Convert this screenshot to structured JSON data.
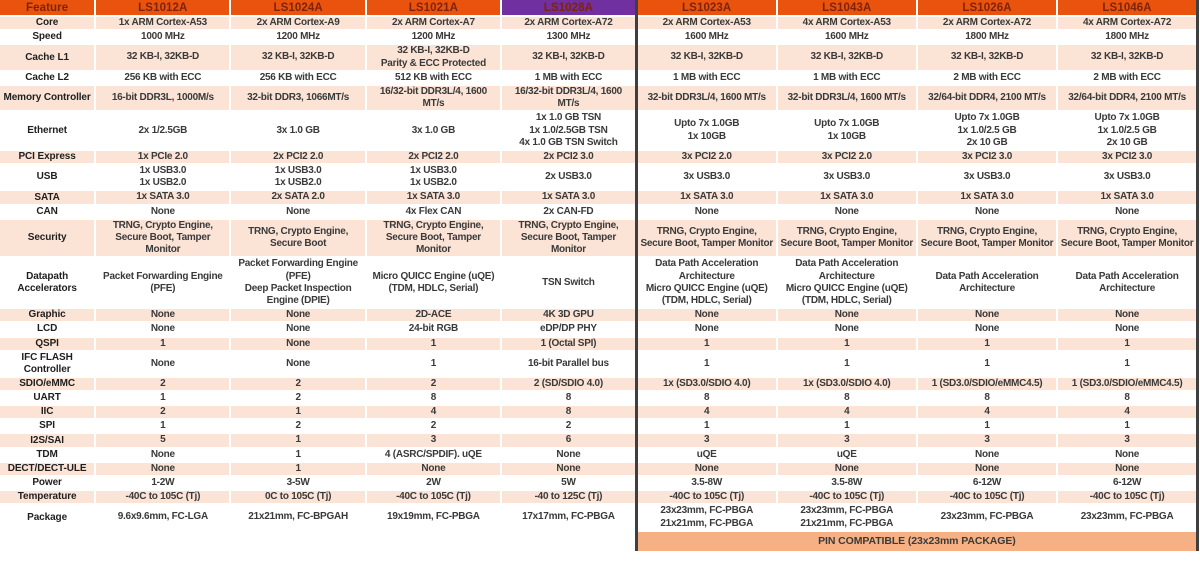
{
  "colors": {
    "header_orange": "#EA530E",
    "header_purple": "#7030A0",
    "header_text": "#7E2309",
    "row_peach": "#FBE3D5",
    "row_white": "#FFFFFF",
    "pin_row_bg": "#F5B183",
    "divider_dark": "#3F3F3F",
    "body_text": "#3A3A3A"
  },
  "table": {
    "columns": [
      {
        "id": "feature",
        "label": "Feature"
      },
      {
        "id": "ls1012a",
        "label": "LS1012A",
        "group": "left"
      },
      {
        "id": "ls1024a",
        "label": "LS1024A",
        "group": "left"
      },
      {
        "id": "ls1021a",
        "label": "LS1021A",
        "group": "left"
      },
      {
        "id": "ls1028a",
        "label": "LS1028A",
        "group": "left",
        "accent": "purple"
      },
      {
        "id": "ls1023a",
        "label": "LS1023A",
        "group": "right"
      },
      {
        "id": "ls1043a",
        "label": "LS1043A",
        "group": "right"
      },
      {
        "id": "ls1026a",
        "label": "LS1026A",
        "group": "right"
      },
      {
        "id": "ls1046a",
        "label": "LS1046A",
        "group": "right"
      }
    ],
    "rows": [
      {
        "feature": "Core",
        "values": [
          "1x ARM Cortex-A53",
          "2x ARM Cortex-A9",
          "2x ARM Cortex-A7",
          "2x ARM Cortex-A72",
          "2x ARM Cortex-A53",
          "4x ARM Cortex-A53",
          "2x ARM Cortex-A72",
          "4x ARM Cortex-A72"
        ]
      },
      {
        "feature": "Speed",
        "values": [
          "1000 MHz",
          "1200 MHz",
          "1200 MHz",
          "1300 MHz",
          "1600 MHz",
          "1600 MHz",
          "1800 MHz",
          "1800 MHz"
        ]
      },
      {
        "feature": "Cache L1",
        "values": [
          "32 KB-I, 32KB-D",
          "32 KB-I, 32KB-D",
          "32 KB-I, 32KB-D\nParity & ECC Protected",
          "32 KB-I, 32KB-D",
          "32 KB-I, 32KB-D",
          "32 KB-I, 32KB-D",
          "32 KB-I, 32KB-D",
          "32 KB-I, 32KB-D"
        ]
      },
      {
        "feature": "Cache L2",
        "values": [
          "256 KB with ECC",
          "256 KB with ECC",
          "512 KB with ECC",
          "1 MB with ECC",
          "1 MB with ECC",
          "1 MB with ECC",
          "2 MB with ECC",
          "2 MB with ECC"
        ]
      },
      {
        "feature": "Memory Controller",
        "values": [
          "16-bit DDR3L, 1000M/s",
          "32-bit DDR3, 1066MT/s",
          "16/32-bit DDR3L/4, 1600 MT/s",
          "16/32-bit DDR3L/4, 1600 MT/s",
          "32-bit DDR3L/4, 1600 MT/s",
          "32-bit DDR3L/4, 1600 MT/s",
          "32/64-bit DDR4, 2100 MT/s",
          "32/64-bit DDR4, 2100 MT/s"
        ]
      },
      {
        "feature": "Ethernet",
        "values": [
          "2x 1/2.5GB",
          "3x 1.0 GB",
          "3x 1.0 GB",
          "1x 1.0 GB TSN\n1x 1.0/2.5GB TSN\n4x 1.0 GB TSN Switch",
          "Upto 7x 1.0GB\n1x 10GB",
          "Upto 7x 1.0GB\n1x 10GB",
          "Upto 7x 1.0GB\n1x 1.0/2.5 GB\n2x 10 GB",
          "Upto 7x 1.0GB\n1x 1.0/2.5 GB\n2x 10 GB"
        ]
      },
      {
        "feature": "PCI Express",
        "values": [
          "1x PCIe 2.0",
          "2x PCI2 2.0",
          "2x PCI2 2.0",
          "2x PCI2 3.0",
          "3x PCI2 2.0",
          "3x PCI2 2.0",
          "3x PCI2 3.0",
          "3x PCI2 3.0"
        ]
      },
      {
        "feature": "USB",
        "values": [
          "1x USB3.0\n1x USB2.0",
          "1x USB3.0\n1x USB2.0",
          "1x USB3.0\n1x USB2.0",
          "2x USB3.0",
          "3x USB3.0",
          "3x USB3.0",
          "3x USB3.0",
          "3x USB3.0"
        ]
      },
      {
        "feature": "SATA",
        "values": [
          "1x SATA 3.0",
          "2x SATA 2.0",
          "1x SATA 3.0",
          "1x SATA 3.0",
          "1x SATA 3.0",
          "1x SATA 3.0",
          "1x SATA 3.0",
          "1x SATA 3.0"
        ]
      },
      {
        "feature": "CAN",
        "values": [
          "None",
          "None",
          "4x Flex CAN",
          "2x CAN-FD",
          "None",
          "None",
          "None",
          "None"
        ]
      },
      {
        "feature": "Security",
        "values": [
          "TRNG, Crypto Engine, Secure Boot, Tamper Monitor",
          "TRNG, Crypto Engine, Secure Boot",
          "TRNG, Crypto Engine, Secure Boot, Tamper Monitor",
          "TRNG, Crypto Engine, Secure Boot, Tamper Monitor",
          "TRNG, Crypto Engine, Secure Boot, Tamper Monitor",
          "TRNG, Crypto Engine, Secure Boot, Tamper Monitor",
          "TRNG, Crypto Engine, Secure Boot, Tamper Monitor",
          "TRNG, Crypto Engine, Secure Boot, Tamper Monitor"
        ]
      },
      {
        "feature": "Datapath Accelerators",
        "values": [
          "Packet Forwarding Engine (PFE)",
          "Packet Forwarding Engine (PFE)\nDeep Packet Inspection Engine (DPIE)",
          "Micro QUICC Engine (uQE)\n(TDM, HDLC, Serial)",
          "TSN Switch",
          "Data Path Acceleration Architecture\nMicro QUICC Engine (uQE)\n(TDM, HDLC, Serial)",
          "Data Path Acceleration Architecture\nMicro QUICC Engine (uQE)\n(TDM, HDLC, Serial)",
          "Data Path Acceleration Architecture",
          "Data Path Acceleration Architecture"
        ]
      },
      {
        "feature": "Graphic",
        "values": [
          "None",
          "None",
          "2D-ACE",
          "4K 3D GPU",
          "None",
          "None",
          "None",
          "None"
        ]
      },
      {
        "feature": "LCD",
        "values": [
          "None",
          "None",
          "24-bit RGB",
          "eDP/DP PHY",
          "None",
          "None",
          "None",
          "None"
        ]
      },
      {
        "feature": "QSPI",
        "values": [
          "1",
          "None",
          "1",
          "1 (Octal SPI)",
          "1",
          "1",
          "1",
          "1"
        ]
      },
      {
        "feature": "IFC FLASH Controller",
        "values": [
          "None",
          "None",
          "1",
          "16-bit Parallel bus",
          "1",
          "1",
          "1",
          "1"
        ]
      },
      {
        "feature": "SDIO/eMMC",
        "values": [
          "2",
          "2",
          "2",
          "2 (SD/SDIO 4.0)",
          "1x (SD3.0/SDIO 4.0)",
          "1x (SD3.0/SDIO 4.0)",
          "1 (SD3.0/SDIO/eMMC4.5)",
          "1 (SD3.0/SDIO/eMMC4.5)"
        ]
      },
      {
        "feature": "UART",
        "values": [
          "1",
          "2",
          "8",
          "8",
          "8",
          "8",
          "8",
          "8"
        ]
      },
      {
        "feature": "IIC",
        "values": [
          "2",
          "1",
          "4",
          "8",
          "4",
          "4",
          "4",
          "4"
        ]
      },
      {
        "feature": "SPI",
        "values": [
          "1",
          "2",
          "2",
          "2",
          "1",
          "1",
          "1",
          "1"
        ]
      },
      {
        "feature": "I2S/SAI",
        "values": [
          "5",
          "1",
          "3",
          "6",
          "3",
          "3",
          "3",
          "3"
        ]
      },
      {
        "feature": "TDM",
        "values": [
          "None",
          "1",
          "4 (ASRC/SPDIF). uQE",
          "None",
          "uQE",
          "uQE",
          "None",
          "None"
        ]
      },
      {
        "feature": "DECT/DECT-ULE",
        "values": [
          "None",
          "1",
          "None",
          "None",
          "None",
          "None",
          "None",
          "None"
        ]
      },
      {
        "feature": "Power",
        "values": [
          "1-2W",
          "3-5W",
          "2W",
          "5W",
          "3.5-8W",
          "3.5-8W",
          "6-12W",
          "6-12W"
        ]
      },
      {
        "feature": "Temperature",
        "values": [
          "-40C to 105C (Tj)",
          "0C to 105C (Tj)",
          "-40C to 105C (Tj)",
          "-40 to 125C (Tj)",
          "-40C to 105C (Tj)",
          "-40C to 105C (Tj)",
          "-40C to 105C (Tj)",
          "-40C to 105C (Tj)"
        ]
      },
      {
        "feature": "Package",
        "values": [
          "9.6x9.6mm, FC-LGA",
          "21x21mm, FC-BPGAH",
          "19x19mm, FC-PBGA",
          "17x17mm, FC-PBGA",
          "23x23mm, FC-PBGA\n21x21mm, FC-PBGA",
          "23x23mm, FC-PBGA\n21x21mm, FC-PBGA",
          "23x23mm, FC-PBGA",
          "23x23mm, FC-PBGA"
        ]
      }
    ]
  },
  "footer": {
    "pin_compatible": "PIN COMPATIBLE (23x23mm PACKAGE)"
  }
}
